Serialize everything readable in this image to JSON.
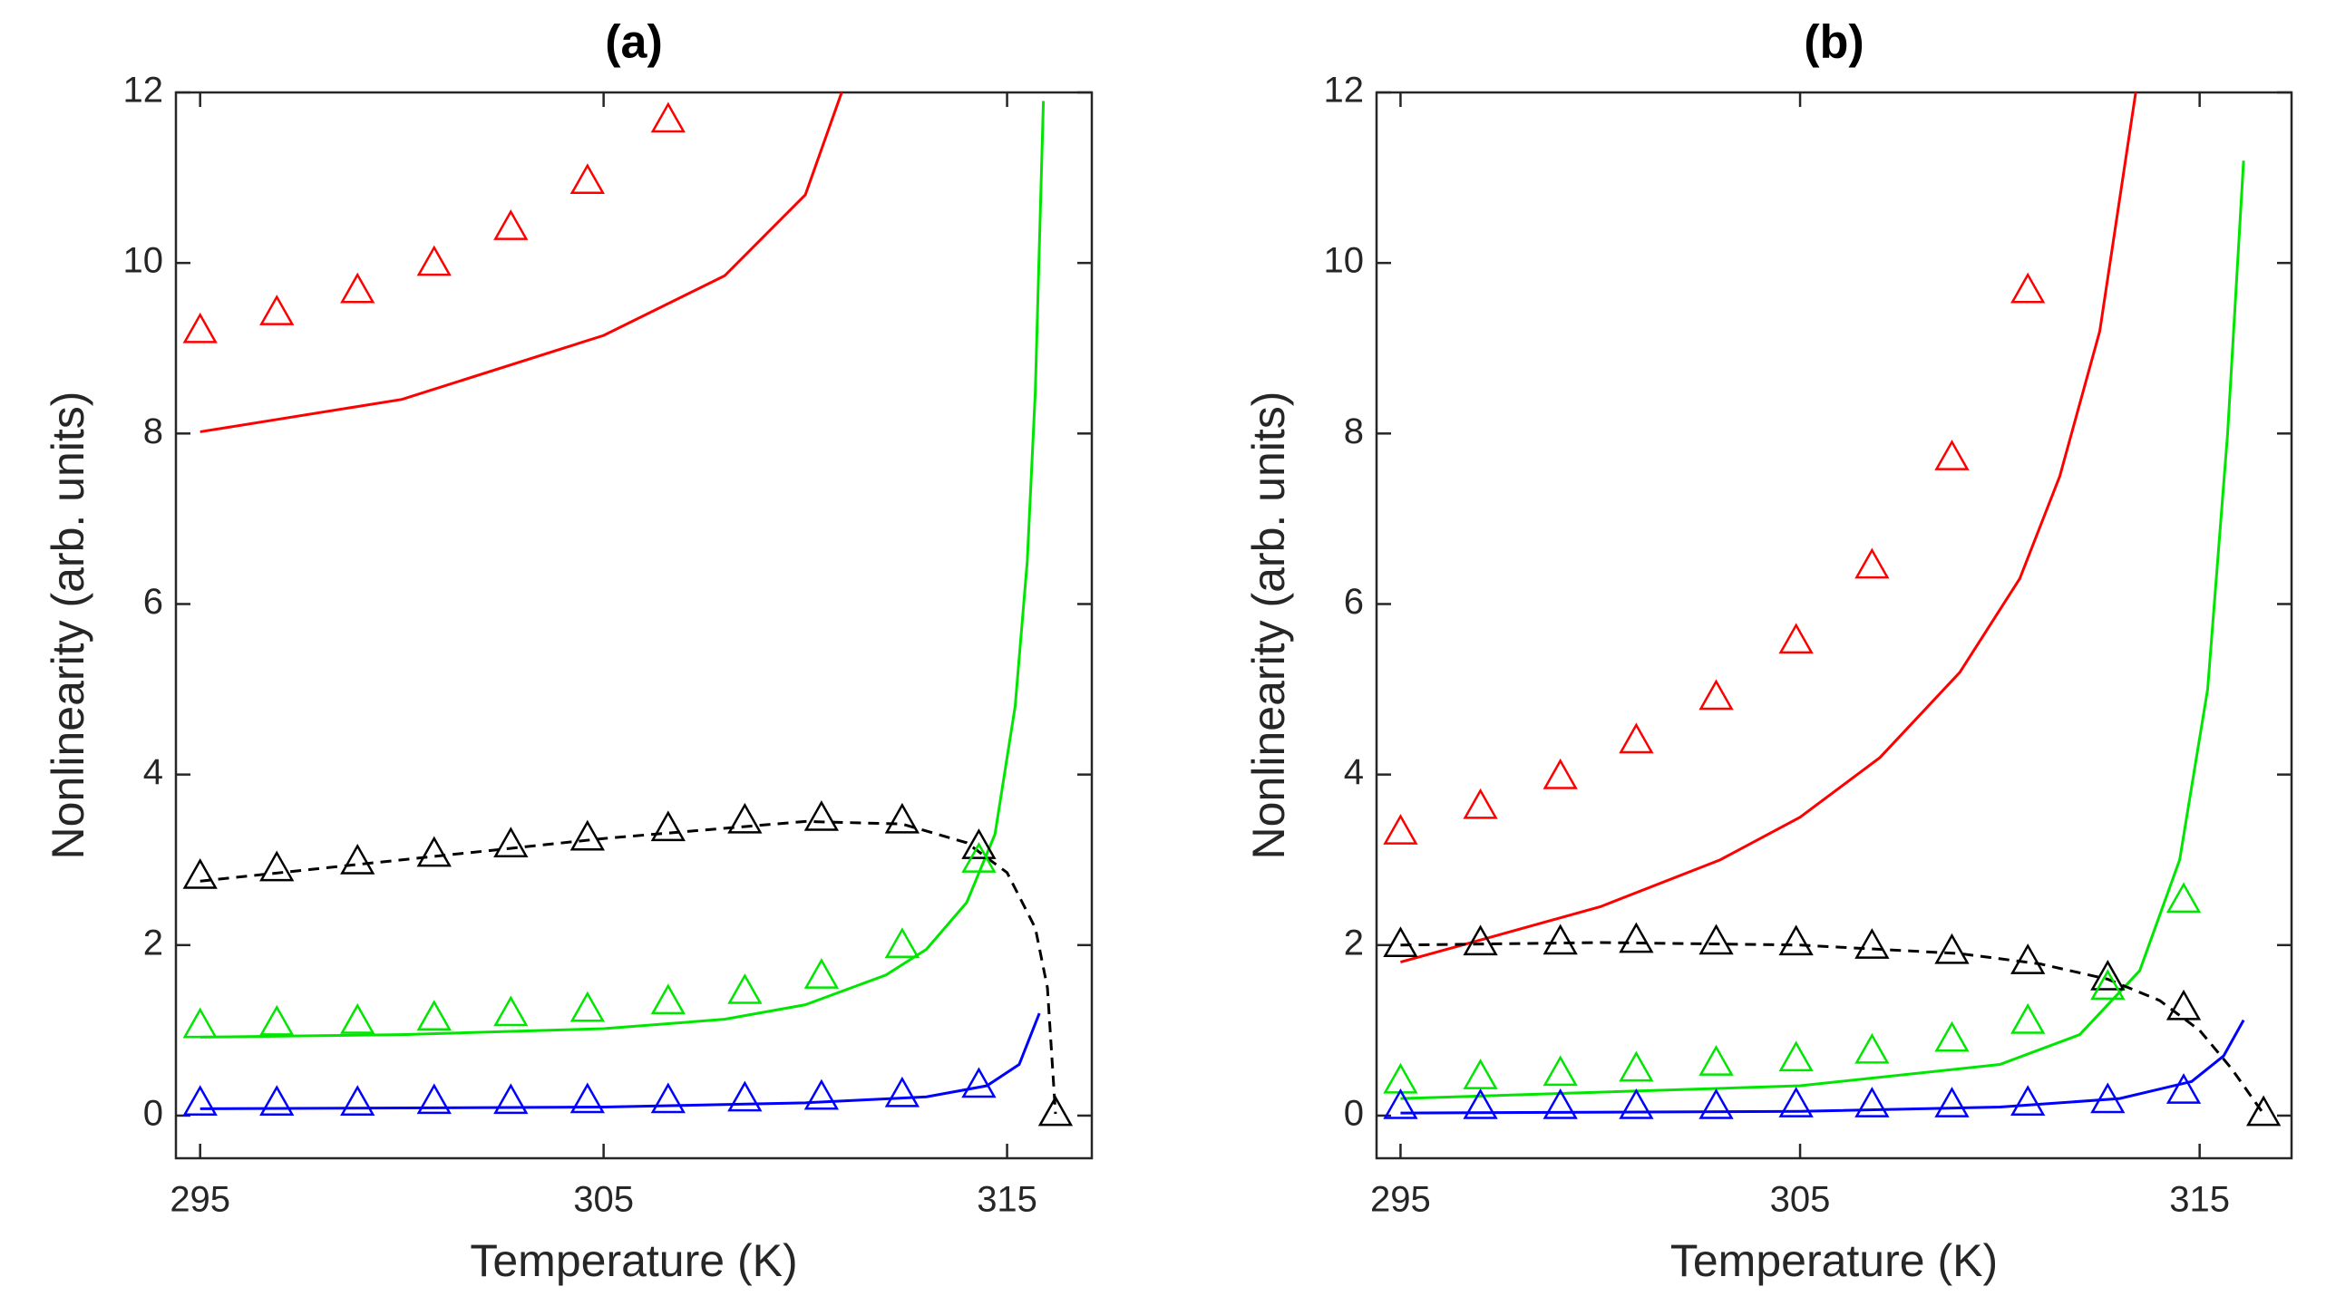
{
  "chart_data": [
    {
      "type": "line",
      "title": "(a)",
      "x_label": "Temperature (K)",
      "y_label": "Nonlinearity (arb. units)",
      "xlim": [
        294.4,
        317.1
      ],
      "ylim": [
        -0.5,
        12
      ],
      "xticks": [
        295,
        305,
        315
      ],
      "yticks": [
        0,
        2,
        4,
        6,
        8,
        10,
        12
      ],
      "series": [
        {
          "color": "#ff0000",
          "style": "markers",
          "x": [
            295,
            296.9,
            298.9,
            300.8,
            302.7,
            304.6,
            306.6
          ],
          "values": [
            9.2,
            9.41,
            9.67,
            9.99,
            10.41,
            10.95,
            11.67
          ]
        },
        {
          "color": "#000000",
          "style": "markers",
          "x": [
            295,
            296.9,
            298.9,
            300.8,
            302.7,
            304.6,
            306.6,
            308.5,
            310.4,
            312.4,
            314.3,
            316.2
          ],
          "values": [
            2.8,
            2.89,
            2.97,
            3.06,
            3.17,
            3.25,
            3.36,
            3.45,
            3.48,
            3.45,
            3.15,
            0.02
          ]
        },
        {
          "color": "#00e600",
          "style": "markers",
          "x": [
            295,
            296.9,
            298.9,
            300.8,
            302.7,
            304.6,
            306.6,
            308.5,
            310.4,
            312.4,
            314.3
          ],
          "values": [
            1.05,
            1.08,
            1.1,
            1.14,
            1.19,
            1.24,
            1.33,
            1.45,
            1.63,
            1.99,
            2.99
          ]
        },
        {
          "color": "#0000ff",
          "style": "markers",
          "x": [
            295,
            296.9,
            298.9,
            300.8,
            302.7,
            304.6,
            306.6,
            308.5,
            310.4,
            312.4,
            314.3
          ],
          "values": [
            0.14,
            0.14,
            0.14,
            0.16,
            0.16,
            0.17,
            0.17,
            0.19,
            0.21,
            0.24,
            0.35
          ]
        },
        {
          "color": "#ff0000",
          "style": "solid",
          "x": [
            295,
            300,
            305,
            308,
            310,
            310.9
          ],
          "values": [
            8.02,
            8.4,
            9.15,
            9.85,
            10.8,
            12
          ]
        },
        {
          "color": "#00e600",
          "style": "solid",
          "x": [
            295,
            300,
            305,
            308,
            310,
            312,
            313,
            314,
            314.7,
            315.2,
            315.5,
            315.7,
            315.9
          ],
          "values": [
            0.92,
            0.95,
            1.02,
            1.13,
            1.3,
            1.65,
            1.95,
            2.5,
            3.3,
            4.8,
            6.5,
            8.5,
            11.9
          ]
        },
        {
          "color": "#0000ff",
          "style": "solid",
          "x": [
            295,
            305,
            310,
            313,
            314.5,
            315.3,
            315.8
          ],
          "values": [
            0.08,
            0.1,
            0.15,
            0.22,
            0.35,
            0.6,
            1.2
          ]
        },
        {
          "color": "#000000",
          "style": "dashed",
          "x": [
            295,
            300,
            305,
            310,
            312.4,
            314,
            315,
            315.7,
            316,
            316.2
          ],
          "values": [
            2.75,
            3.0,
            3.25,
            3.45,
            3.42,
            3.2,
            2.85,
            2.2,
            1.5,
            0.02
          ]
        }
      ]
    },
    {
      "type": "line",
      "title": "(b)",
      "x_label": "Temperature (K)",
      "y_label": "Nonlinearity (arb. units)",
      "xlim": [
        294.4,
        317.3
      ],
      "ylim": [
        -0.5,
        12
      ],
      "xticks": [
        295,
        305,
        315
      ],
      "yticks": [
        0,
        2,
        4,
        6,
        8,
        10,
        12
      ],
      "series": [
        {
          "color": "#ff0000",
          "style": "markers",
          "x": [
            295,
            297,
            299,
            300.9,
            302.9,
            304.9,
            306.8,
            308.8,
            310.7
          ],
          "values": [
            3.32,
            3.62,
            3.97,
            4.39,
            4.9,
            5.56,
            6.44,
            7.71,
            9.67
          ]
        },
        {
          "color": "#000000",
          "style": "markers",
          "x": [
            295,
            297,
            299,
            300.9,
            302.9,
            304.9,
            306.8,
            308.8,
            310.7,
            312.7,
            314.6,
            316.6
          ],
          "values": [
            2.0,
            2.02,
            2.03,
            2.05,
            2.03,
            2.02,
            1.98,
            1.92,
            1.8,
            1.61,
            1.26,
            0.02
          ]
        },
        {
          "color": "#00e600",
          "style": "markers",
          "x": [
            295,
            297,
            299,
            300.9,
            302.9,
            304.9,
            306.8,
            308.8,
            310.7,
            312.7,
            314.6
          ],
          "values": [
            0.4,
            0.45,
            0.49,
            0.54,
            0.61,
            0.66,
            0.75,
            0.89,
            1.1,
            1.5,
            2.52
          ]
        },
        {
          "color": "#0000ff",
          "style": "markers",
          "x": [
            295,
            297,
            299,
            300.9,
            302.9,
            304.9,
            306.8,
            308.8,
            310.7,
            312.7,
            314.6
          ],
          "values": [
            0.1,
            0.1,
            0.1,
            0.1,
            0.1,
            0.12,
            0.12,
            0.12,
            0.14,
            0.17,
            0.28
          ]
        },
        {
          "color": "#ff0000",
          "style": "solid",
          "x": [
            295,
            300,
            303,
            305,
            307,
            309,
            310.5,
            311.5,
            312.5,
            313.4
          ],
          "values": [
            1.8,
            2.45,
            3.0,
            3.5,
            4.2,
            5.2,
            6.3,
            7.5,
            9.2,
            12
          ]
        },
        {
          "color": "#00e600",
          "style": "solid",
          "x": [
            295,
            305,
            310,
            312,
            313.5,
            314.5,
            315.2,
            315.7,
            316.1
          ],
          "values": [
            0.2,
            0.35,
            0.6,
            0.95,
            1.7,
            3.0,
            5.0,
            8.0,
            11.2
          ]
        },
        {
          "color": "#0000ff",
          "style": "solid",
          "x": [
            295,
            305,
            310,
            313,
            314.8,
            315.6,
            316.1
          ],
          "values": [
            0.03,
            0.05,
            0.1,
            0.2,
            0.4,
            0.7,
            1.12
          ]
        },
        {
          "color": "#000000",
          "style": "dashed",
          "x": [
            295,
            300,
            305,
            309,
            311,
            312.7,
            314,
            315,
            315.8,
            316.6
          ],
          "values": [
            2.0,
            2.03,
            2.0,
            1.9,
            1.78,
            1.6,
            1.35,
            1.0,
            0.55,
            0.02
          ]
        }
      ]
    }
  ]
}
